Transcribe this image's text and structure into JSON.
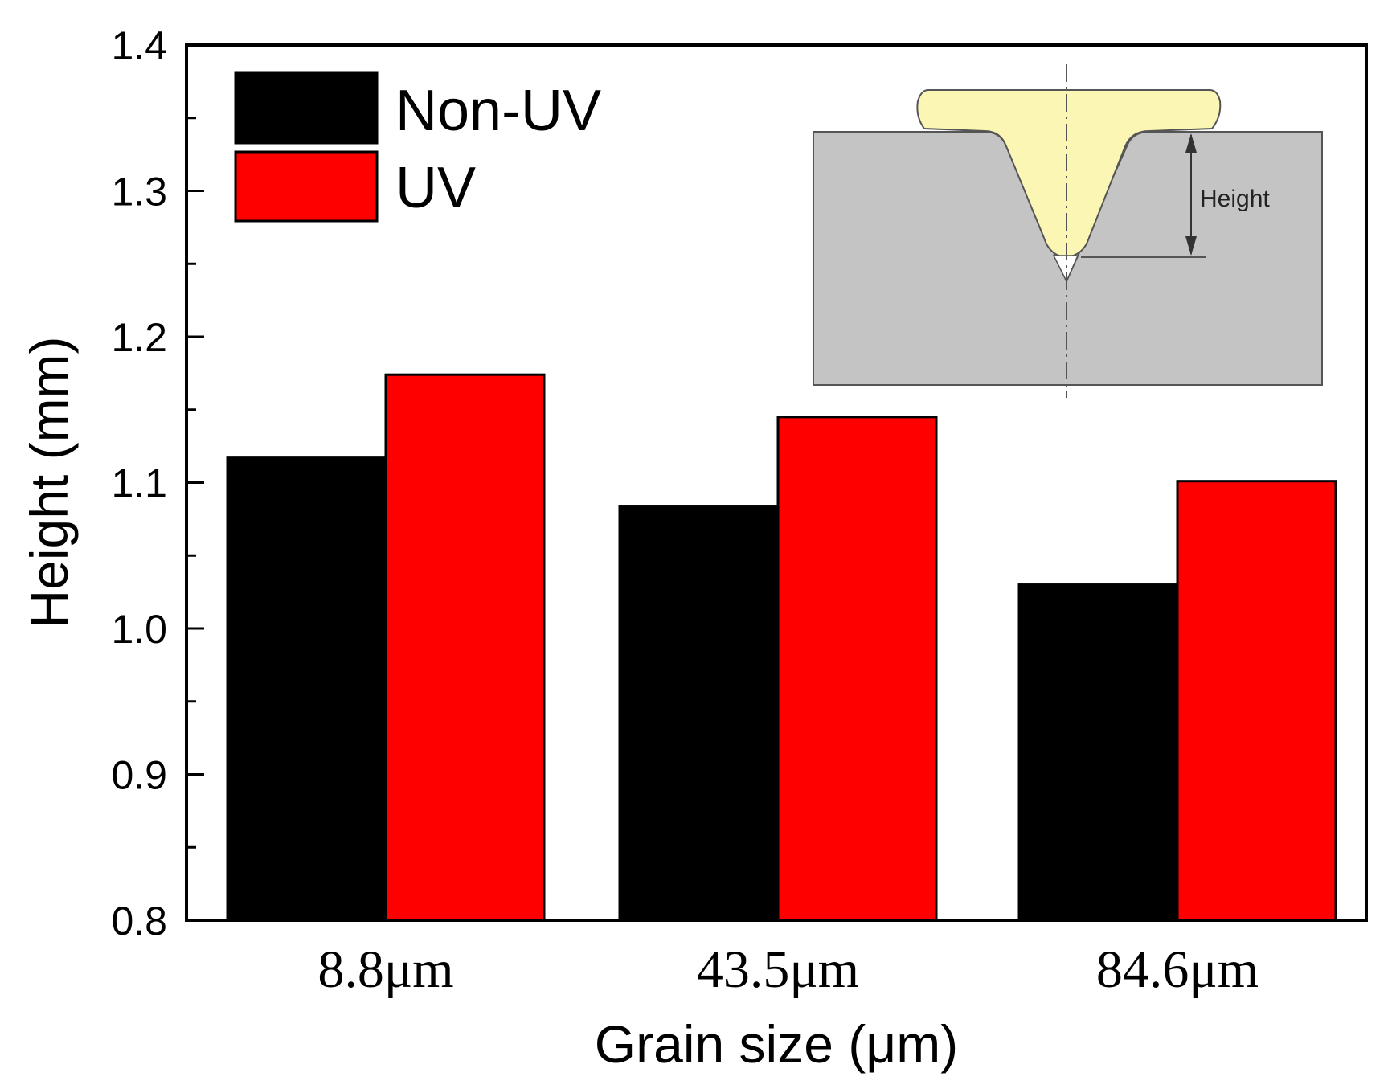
{
  "chart_data": {
    "type": "bar",
    "categories": [
      "8.8μm",
      "43.5μm",
      "84.6μm"
    ],
    "series": [
      {
        "name": "Non-UV",
        "color": "#000000",
        "values": [
          1.117,
          1.084,
          1.03
        ]
      },
      {
        "name": "UV",
        "color": "#ff0000",
        "values": [
          1.174,
          1.145,
          1.101
        ]
      }
    ],
    "xlabel": "Grain size (μm)",
    "ylabel": "Height (mm)",
    "ylim": [
      0.8,
      1.4
    ],
    "yticks": [
      "0.8",
      "0.9",
      "1.0",
      "1.1",
      "1.2",
      "1.3",
      "1.4"
    ],
    "ytick_values": [
      0.8,
      0.9,
      1.0,
      1.1,
      1.2,
      1.3,
      1.4
    ],
    "grid": false,
    "legend_position": "top-left",
    "inset": {
      "label": "Height"
    }
  }
}
